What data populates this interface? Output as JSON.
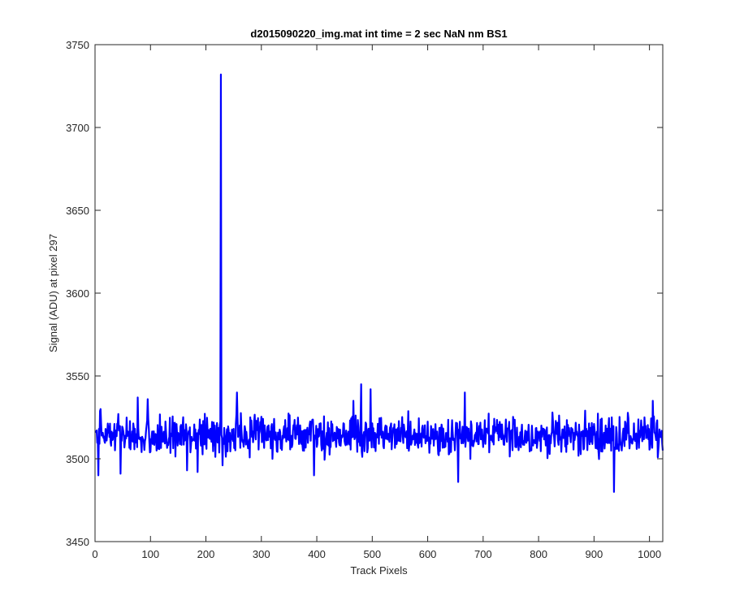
{
  "chart_data": {
    "type": "line",
    "title": "d2015090220_img.mat int time = 2 sec  NaN nm BS1",
    "xlabel": "Track Pixels",
    "ylabel": "Signal (ADU) at pixel 297",
    "xlim": [
      0,
      1024
    ],
    "ylim": [
      3450,
      3750
    ],
    "xticks": [
      0,
      100,
      200,
      300,
      400,
      500,
      600,
      700,
      800,
      900,
      1000
    ],
    "yticks": [
      3450,
      3500,
      3550,
      3600,
      3650,
      3700,
      3750
    ],
    "grid": false,
    "legend": "none",
    "line_color": "#0000ff",
    "series": [
      {
        "x_start": 1,
        "x_step": 1,
        "noise_baseline": 3514,
        "noise_amplitude": 10,
        "values_note_points": [
          {
            "x": 6,
            "y": 3490
          },
          {
            "x": 10,
            "y": 3530
          },
          {
            "x": 46,
            "y": 3491
          },
          {
            "x": 77,
            "y": 3537
          },
          {
            "x": 95,
            "y": 3536
          },
          {
            "x": 166,
            "y": 3493
          },
          {
            "x": 185,
            "y": 3492
          },
          {
            "x": 227,
            "y": 3732
          },
          {
            "x": 230,
            "y": 3496
          },
          {
            "x": 256,
            "y": 3540
          },
          {
            "x": 395,
            "y": 3490
          },
          {
            "x": 466,
            "y": 3535
          },
          {
            "x": 480,
            "y": 3545
          },
          {
            "x": 497,
            "y": 3542
          },
          {
            "x": 655,
            "y": 3486
          },
          {
            "x": 667,
            "y": 3540
          },
          {
            "x": 936,
            "y": 3480
          },
          {
            "x": 1006,
            "y": 3535
          },
          {
            "x": 1024,
            "y": 3505
          }
        ]
      }
    ]
  }
}
